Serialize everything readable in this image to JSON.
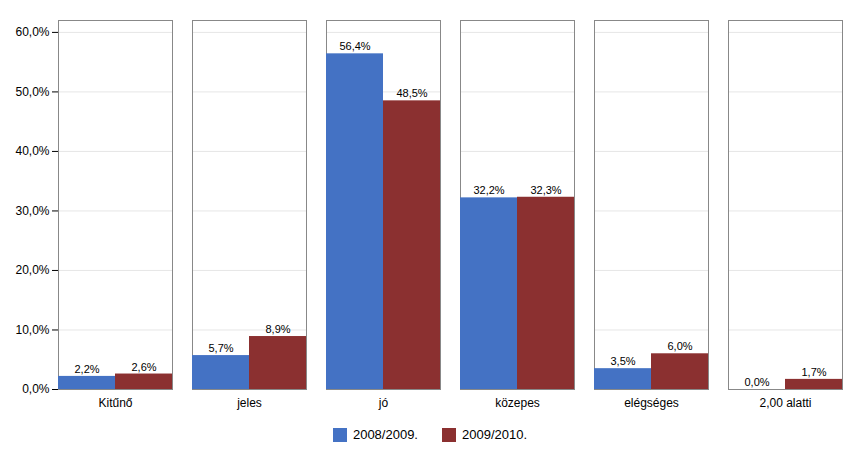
{
  "chart_data": {
    "type": "bar",
    "categories": [
      "Kitűnő",
      "jeles",
      "jó",
      "közepes",
      "elégséges",
      "2,00 alatti"
    ],
    "series": [
      {
        "name": "2008/2009.",
        "color": "#4472C4",
        "values": [
          2.2,
          5.7,
          56.4,
          32.2,
          3.5,
          0.0
        ],
        "value_labels": [
          "2,2%",
          "5,7%",
          "56,4%",
          "32,2%",
          "3,5%",
          "0,0%"
        ]
      },
      {
        "name": "2009/2010.",
        "color": "#8B3030",
        "values": [
          2.6,
          8.9,
          48.5,
          32.3,
          6.0,
          1.7
        ],
        "value_labels": [
          "2,6%",
          "8,9%",
          "48,5%",
          "32,3%",
          "6,0%",
          "1,7%"
        ]
      }
    ],
    "ylim": [
      0,
      62
    ],
    "yticks": [
      {
        "value": 0,
        "label": "0,0%"
      },
      {
        "value": 10,
        "label": "10,0%"
      },
      {
        "value": 20,
        "label": "20,0%"
      },
      {
        "value": 30,
        "label": "30,0%"
      },
      {
        "value": 40,
        "label": "40,0%"
      },
      {
        "value": 50,
        "label": "50,0%"
      },
      {
        "value": 60,
        "label": "60,0%"
      }
    ],
    "grid": true,
    "data_labels": true,
    "legend": "bottom"
  }
}
